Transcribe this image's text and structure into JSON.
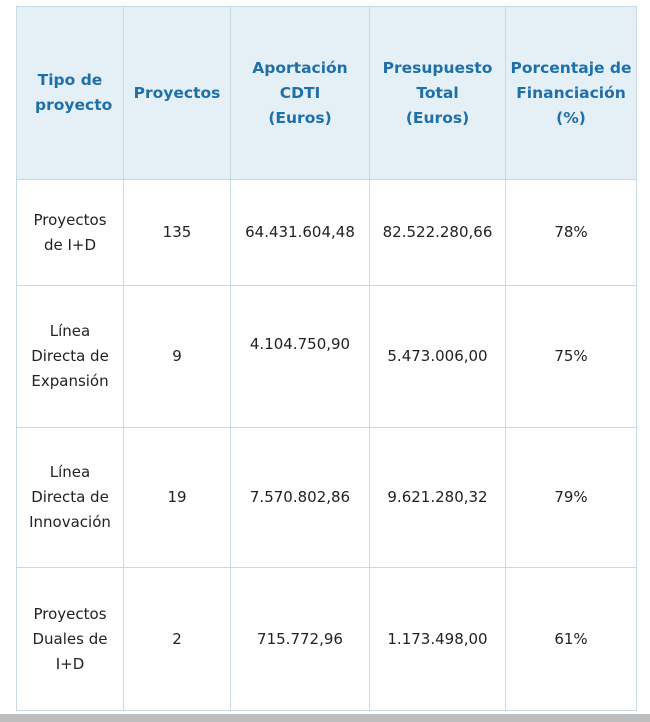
{
  "table": {
    "headers": [
      "Tipo de proyecto",
      "Proyectos",
      "Aportación CDTI (Euros)",
      "Presupuesto Total (Euros)",
      "Porcentaje de Financiación (%)"
    ],
    "rows": [
      {
        "tipo": "Proyectos de I+D",
        "proyectos": "135",
        "aportacion": "64.431.604,48",
        "presupuesto": "82.522.280,66",
        "porcentaje": "78%"
      },
      {
        "tipo": "Línea Directa de Expansión",
        "proyectos": "9",
        "aportacion": "4.104.750,90",
        "presupuesto": "5.473.006,00",
        "porcentaje": "75%"
      },
      {
        "tipo": "Línea Directa de Innovación",
        "proyectos": "19",
        "aportacion": "7.570.802,86",
        "presupuesto": "9.621.280,32",
        "porcentaje": "79%"
      },
      {
        "tipo": "Proyectos Duales de I+D",
        "proyectos": "2",
        "aportacion": "715.772,96",
        "presupuesto": "1.173.498,00",
        "porcentaje": "61%"
      }
    ]
  },
  "colors": {
    "header_background": "#e5f0f6",
    "header_text": "#1f6fa8",
    "border": "#c9d9e4",
    "body_text": "#222222"
  }
}
